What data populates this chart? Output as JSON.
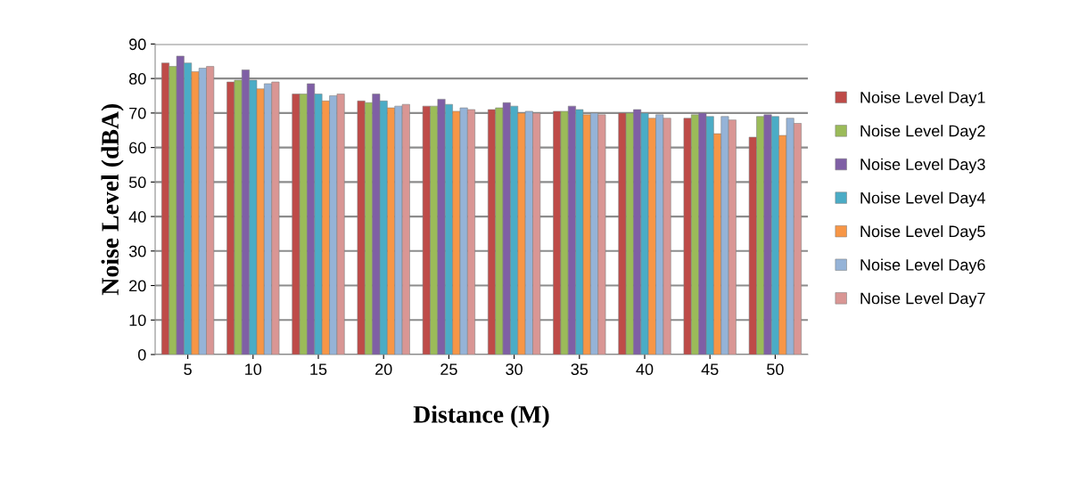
{
  "chart_data": {
    "type": "bar",
    "xlabel": "Distance (M)",
    "ylabel": "Noise Level (dBA)",
    "categories": [
      "5",
      "10",
      "15",
      "20",
      "25",
      "30",
      "35",
      "40",
      "45",
      "50"
    ],
    "series": [
      {
        "name": "Noise Level Day1",
        "color": "#be4b48",
        "values": [
          84.5,
          79,
          75.5,
          73.5,
          72,
          71,
          70.5,
          70,
          68.5,
          63
        ]
      },
      {
        "name": "Noise Level Day2",
        "color": "#9bbb59",
        "values": [
          83.5,
          79.5,
          75.5,
          73,
          72,
          71.5,
          70.5,
          70,
          69.5,
          69
        ]
      },
      {
        "name": "Noise Level Day3",
        "color": "#7f5fa5",
        "values": [
          86.5,
          82.5,
          78.5,
          75.5,
          74,
          73,
          72,
          71,
          70,
          69.5
        ]
      },
      {
        "name": "Noise Level Day4",
        "color": "#4bacc6",
        "values": [
          84.5,
          79.5,
          75.5,
          73.5,
          72.5,
          72,
          71,
          70,
          69,
          69
        ]
      },
      {
        "name": "Noise Level Day5",
        "color": "#f79646",
        "values": [
          82,
          77,
          73.5,
          71.5,
          70.5,
          70,
          69.5,
          68.5,
          64,
          63.5
        ]
      },
      {
        "name": "Noise Level Day6",
        "color": "#95b3d7",
        "values": [
          83,
          78.5,
          75,
          72,
          71.5,
          70.5,
          70,
          69.5,
          69,
          68.5
        ]
      },
      {
        "name": "Noise Level Day7",
        "color": "#d99694",
        "values": [
          83.5,
          79,
          75.5,
          72.5,
          71,
          70,
          69.5,
          68.5,
          68,
          67
        ]
      }
    ],
    "ylim": [
      0,
      90
    ],
    "yticks": [
      0,
      10,
      20,
      30,
      40,
      50,
      60,
      70,
      80,
      90
    ],
    "grid": "y",
    "legend": "right"
  }
}
